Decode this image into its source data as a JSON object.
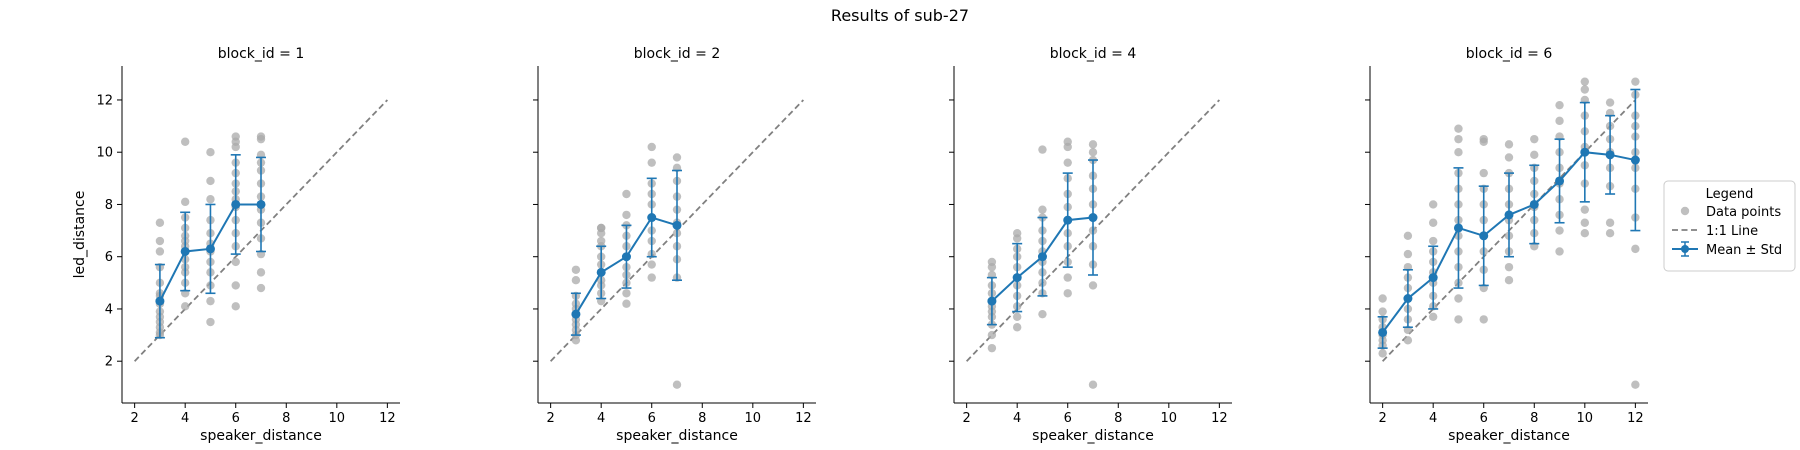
{
  "figure": {
    "title": "Results of sub-27"
  },
  "legend": {
    "title": "Legend",
    "placement": "right-center",
    "entries": [
      {
        "label": "Data points",
        "marker": "circle",
        "color": "#a9a9a9"
      },
      {
        "label": "1:1 Line",
        "marker": "dashed-line",
        "color": "#808080"
      },
      {
        "label": "Mean ± Std",
        "marker": "line-errorbar",
        "color": "#1f77b4"
      }
    ]
  },
  "colors": {
    "points": "#a9a9a9",
    "mean": "#1f77b4",
    "identity": "#808080"
  },
  "chart_data": [
    {
      "type": "scatter",
      "title": "block_id = 1",
      "xlabel": "speaker_distance",
      "ylabel": "led_distance",
      "xlim": [
        1.5,
        12.5
      ],
      "ylim": [
        0.4,
        13.3
      ],
      "xticks": [
        2,
        4,
        6,
        8,
        10,
        12
      ],
      "yticks": [
        2,
        4,
        6,
        8,
        10,
        12
      ],
      "identity_line": [
        2,
        12
      ],
      "points": [
        {
          "x": 3,
          "y": [
            3.0,
            3.1,
            3.3,
            3.5,
            3.7,
            3.9,
            4.2,
            4.5,
            4.6,
            5.0,
            5.6,
            6.2,
            6.6,
            7.3
          ]
        },
        {
          "x": 4,
          "y": [
            4.1,
            4.6,
            5.0,
            5.4,
            5.6,
            5.9,
            6.2,
            6.4,
            6.6,
            6.8,
            7.1,
            7.5,
            8.1,
            10.4
          ]
        },
        {
          "x": 5,
          "y": [
            3.5,
            4.3,
            4.9,
            5.4,
            5.8,
            6.2,
            6.5,
            6.9,
            7.4,
            8.2,
            8.9,
            10.0
          ]
        },
        {
          "x": 6,
          "y": [
            4.1,
            4.9,
            5.8,
            6.4,
            6.9,
            7.4,
            7.9,
            8.2,
            8.5,
            8.8,
            9.2,
            9.6,
            10.2,
            10.4,
            10.6
          ]
        },
        {
          "x": 7,
          "y": [
            4.8,
            5.4,
            6.1,
            6.7,
            7.3,
            7.8,
            8.3,
            8.8,
            9.3,
            9.6,
            9.9,
            10.5,
            10.6
          ]
        }
      ],
      "mean": [
        {
          "x": 3,
          "y": 4.3,
          "std": 1.4
        },
        {
          "x": 4,
          "y": 6.2,
          "std": 1.5
        },
        {
          "x": 5,
          "y": 6.3,
          "std": 1.7
        },
        {
          "x": 6,
          "y": 8.0,
          "std": 1.9
        },
        {
          "x": 7,
          "y": 8.0,
          "std": 1.8
        }
      ]
    },
    {
      "type": "scatter",
      "title": "block_id = 2",
      "xlabel": "speaker_distance",
      "ylabel": "",
      "xlim": [
        1.5,
        12.5
      ],
      "ylim": [
        0.4,
        13.3
      ],
      "xticks": [
        2,
        4,
        6,
        8,
        10,
        12
      ],
      "yticks": [
        2,
        4,
        6,
        8,
        10,
        12
      ],
      "identity_line": [
        2,
        12
      ],
      "points": [
        {
          "x": 3,
          "y": [
            2.8,
            3.0,
            3.2,
            3.4,
            3.6,
            3.8,
            4.0,
            4.2,
            4.5,
            5.1,
            5.5
          ]
        },
        {
          "x": 4,
          "y": [
            4.3,
            4.6,
            4.9,
            5.1,
            5.4,
            5.7,
            6.0,
            6.4,
            6.6,
            6.9,
            7.1,
            7.1
          ]
        },
        {
          "x": 5,
          "y": [
            4.2,
            4.6,
            5.0,
            5.3,
            5.6,
            6.0,
            6.4,
            6.8,
            7.2,
            7.6,
            8.4
          ]
        },
        {
          "x": 6,
          "y": [
            5.2,
            5.7,
            6.1,
            6.6,
            7.0,
            7.5,
            8.0,
            8.4,
            8.8,
            9.6,
            10.2
          ]
        },
        {
          "x": 7,
          "y": [
            1.1,
            5.2,
            5.9,
            6.4,
            6.9,
            7.3,
            7.8,
            8.3,
            8.9,
            9.4,
            9.8
          ]
        }
      ],
      "mean": [
        {
          "x": 3,
          "y": 3.8,
          "std": 0.8
        },
        {
          "x": 4,
          "y": 5.4,
          "std": 1.0
        },
        {
          "x": 5,
          "y": 6.0,
          "std": 1.2
        },
        {
          "x": 6,
          "y": 7.5,
          "std": 1.5
        },
        {
          "x": 7,
          "y": 7.2,
          "std": 2.1
        }
      ]
    },
    {
      "type": "scatter",
      "title": "block_id = 4",
      "xlabel": "speaker_distance",
      "ylabel": "",
      "xlim": [
        1.5,
        12.5
      ],
      "ylim": [
        0.4,
        13.3
      ],
      "xticks": [
        2,
        4,
        6,
        8,
        10,
        12
      ],
      "yticks": [
        2,
        4,
        6,
        8,
        10,
        12
      ],
      "identity_line": [
        2,
        12
      ],
      "points": [
        {
          "x": 3,
          "y": [
            2.5,
            3.0,
            3.4,
            3.7,
            3.9,
            4.1,
            4.3,
            4.6,
            4.9,
            5.3,
            5.6,
            5.8
          ]
        },
        {
          "x": 4,
          "y": [
            3.3,
            3.7,
            4.1,
            4.5,
            4.9,
            5.2,
            5.6,
            6.0,
            6.3,
            6.7,
            6.9
          ]
        },
        {
          "x": 5,
          "y": [
            3.8,
            4.6,
            5.0,
            5.4,
            5.8,
            6.2,
            6.6,
            7.0,
            7.5,
            7.8,
            10.1
          ]
        },
        {
          "x": 6,
          "y": [
            4.6,
            5.2,
            5.8,
            6.4,
            6.9,
            7.4,
            7.9,
            8.4,
            9.0,
            9.6,
            10.2,
            10.4
          ]
        },
        {
          "x": 7,
          "y": [
            1.1,
            4.9,
            5.7,
            6.4,
            7.0,
            7.5,
            8.0,
            8.6,
            9.1,
            9.7,
            10.0,
            10.3
          ]
        }
      ],
      "mean": [
        {
          "x": 3,
          "y": 4.3,
          "std": 0.9
        },
        {
          "x": 4,
          "y": 5.2,
          "std": 1.3
        },
        {
          "x": 5,
          "y": 6.0,
          "std": 1.5
        },
        {
          "x": 6,
          "y": 7.4,
          "std": 1.8
        },
        {
          "x": 7,
          "y": 7.5,
          "std": 2.2
        }
      ]
    },
    {
      "type": "scatter",
      "title": "block_id = 6",
      "xlabel": "speaker_distance",
      "ylabel": "",
      "xlim": [
        1.5,
        12.5
      ],
      "ylim": [
        0.4,
        13.3
      ],
      "xticks": [
        2,
        4,
        6,
        8,
        10,
        12
      ],
      "yticks": [
        2,
        4,
        6,
        8,
        10,
        12
      ],
      "identity_line": [
        2,
        12
      ],
      "points": [
        {
          "x": 2,
          "y": [
            2.3,
            2.6,
            2.8,
            3.0,
            3.3,
            3.6,
            3.9,
            4.4
          ]
        },
        {
          "x": 3,
          "y": [
            2.8,
            3.2,
            3.6,
            4.0,
            4.4,
            4.8,
            5.2,
            5.6,
            6.1,
            6.8
          ]
        },
        {
          "x": 4,
          "y": [
            3.7,
            4.1,
            4.5,
            5.0,
            5.4,
            5.8,
            6.2,
            6.6,
            7.3,
            8.0
          ]
        },
        {
          "x": 5,
          "y": [
            3.6,
            4.4,
            5.0,
            5.6,
            6.2,
            6.8,
            7.4,
            8.0,
            8.6,
            9.2,
            10.0,
            10.5,
            10.9
          ]
        },
        {
          "x": 6,
          "y": [
            3.6,
            4.8,
            5.5,
            6.2,
            6.8,
            7.4,
            8.0,
            8.6,
            9.2,
            10.4,
            10.5
          ]
        },
        {
          "x": 7,
          "y": [
            5.1,
            5.6,
            6.2,
            6.8,
            7.4,
            8.0,
            8.6,
            9.2,
            9.8,
            10.3
          ]
        },
        {
          "x": 8,
          "y": [
            6.4,
            6.9,
            7.4,
            7.9,
            8.4,
            8.9,
            9.4,
            9.9,
            10.5
          ]
        },
        {
          "x": 9,
          "y": [
            6.2,
            7.0,
            7.6,
            8.2,
            8.8,
            9.4,
            10.0,
            10.6,
            11.2,
            11.8
          ]
        },
        {
          "x": 10,
          "y": [
            6.9,
            7.3,
            7.8,
            8.8,
            9.5,
            10.2,
            10.8,
            11.4,
            12.0,
            12.4,
            12.7
          ]
        },
        {
          "x": 11,
          "y": [
            6.9,
            7.3,
            8.7,
            9.4,
            10.0,
            10.5,
            11.0,
            11.5,
            11.9
          ]
        },
        {
          "x": 12,
          "y": [
            1.1,
            6.3,
            7.5,
            8.6,
            9.4,
            10.0,
            10.6,
            11.0,
            11.4,
            12.2,
            12.7
          ]
        }
      ],
      "mean": [
        {
          "x": 2,
          "y": 3.1,
          "std": 0.6
        },
        {
          "x": 3,
          "y": 4.4,
          "std": 1.1
        },
        {
          "x": 4,
          "y": 5.2,
          "std": 1.2
        },
        {
          "x": 5,
          "y": 7.1,
          "std": 2.3
        },
        {
          "x": 6,
          "y": 6.8,
          "std": 1.9
        },
        {
          "x": 7,
          "y": 7.6,
          "std": 1.6
        },
        {
          "x": 8,
          "y": 8.0,
          "std": 1.5
        },
        {
          "x": 9,
          "y": 8.9,
          "std": 1.6
        },
        {
          "x": 10,
          "y": 10.0,
          "std": 1.9
        },
        {
          "x": 11,
          "y": 9.9,
          "std": 1.5
        },
        {
          "x": 12,
          "y": 9.7,
          "std": 2.7
        }
      ]
    }
  ]
}
